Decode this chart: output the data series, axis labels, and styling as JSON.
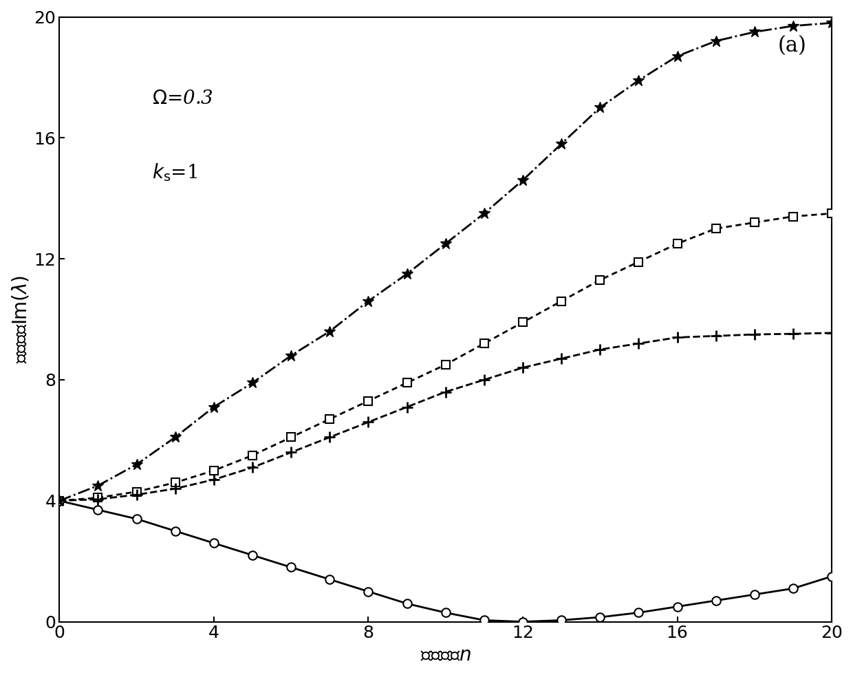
{
  "title_annotation": "(a)",
  "omega_label": "\\Omega=0.3",
  "ks_label": "k_{\\mathrm{s}}=1",
  "xlabel": "振动波数$n$",
  "ylabel": "固有频率$\\mathrm{Im}(\\lambda)$",
  "xlim": [
    0,
    20
  ],
  "ylim": [
    0,
    20
  ],
  "xticks": [
    0,
    4,
    8,
    12,
    16,
    20
  ],
  "yticks": [
    0,
    4,
    8,
    12,
    16,
    20
  ],
  "n_values": [
    0,
    1,
    2,
    3,
    4,
    5,
    6,
    7,
    8,
    9,
    10,
    11,
    12,
    13,
    14,
    15,
    16,
    17,
    18,
    19,
    20
  ],
  "curve_star": [
    4.0,
    4.5,
    5.2,
    6.1,
    7.1,
    7.9,
    8.8,
    9.6,
    10.6,
    11.5,
    12.5,
    13.5,
    14.6,
    15.8,
    17.0,
    17.9,
    18.7,
    19.2,
    19.5,
    19.7,
    19.8
  ],
  "curve_square": [
    4.0,
    4.1,
    4.3,
    4.6,
    5.0,
    5.5,
    6.1,
    6.7,
    7.3,
    7.9,
    8.5,
    9.2,
    9.9,
    10.6,
    11.3,
    11.9,
    12.5,
    13.0,
    13.2,
    13.4,
    13.5
  ],
  "curve_plus": [
    4.0,
    4.05,
    4.2,
    4.4,
    4.7,
    5.1,
    5.6,
    6.1,
    6.6,
    7.1,
    7.6,
    8.0,
    8.4,
    8.7,
    9.0,
    9.2,
    9.4,
    9.45,
    9.5,
    9.52,
    9.55
  ],
  "curve_circle": [
    4.0,
    3.7,
    3.4,
    3.0,
    2.6,
    2.2,
    1.8,
    1.4,
    1.0,
    0.6,
    0.3,
    0.05,
    0.0,
    0.05,
    0.15,
    0.3,
    0.5,
    0.7,
    0.9,
    1.1,
    1.5
  ],
  "color": "#000000",
  "background": "#ffffff"
}
